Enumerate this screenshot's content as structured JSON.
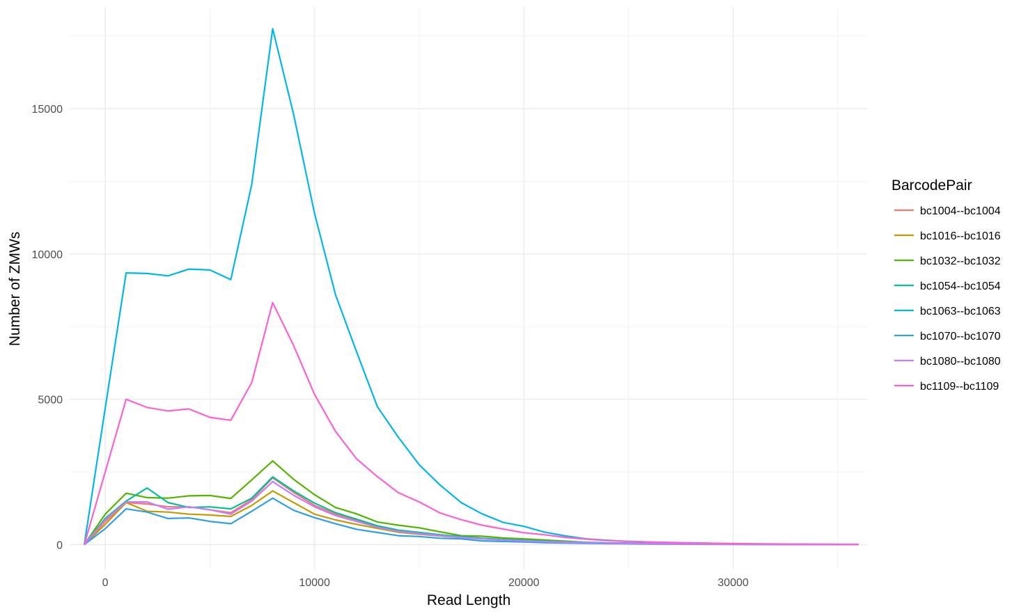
{
  "chart_data": {
    "type": "line",
    "xlabel": "Read Length",
    "ylabel": "Number of ZMWs",
    "xlim": [
      -1700,
      36400
    ],
    "ylim": [
      -850,
      18500
    ],
    "x_ticks": [
      0,
      10000,
      20000,
      30000
    ],
    "y_ticks": [
      0,
      5000,
      10000,
      15000
    ],
    "x_tick_labels": [
      "0",
      "10000",
      "20000",
      "30000"
    ],
    "y_tick_labels": [
      "0",
      "5000",
      "10000",
      "15000"
    ],
    "grid": true,
    "legend_title": "BarcodePair",
    "legend_position": "right",
    "series": [
      {
        "name": "bc1004--bc1004",
        "color": "#F8766D",
        "points": [
          [
            -1000,
            0
          ],
          [
            0,
            800
          ],
          [
            1000,
            1450
          ],
          [
            2000,
            1400
          ],
          [
            3000,
            1300
          ],
          [
            4000,
            1300
          ],
          [
            5000,
            1200
          ],
          [
            6000,
            1100
          ],
          [
            7000,
            1550
          ],
          [
            8000,
            2300
          ],
          [
            9000,
            1800
          ],
          [
            10000,
            1350
          ],
          [
            11000,
            1050
          ],
          [
            12000,
            850
          ],
          [
            13000,
            620
          ],
          [
            14000,
            480
          ],
          [
            15000,
            400
          ],
          [
            16000,
            320
          ],
          [
            17000,
            260
          ],
          [
            18000,
            210
          ],
          [
            19000,
            170
          ],
          [
            20000,
            140
          ],
          [
            21000,
            110
          ],
          [
            22000,
            90
          ],
          [
            23000,
            70
          ],
          [
            24000,
            55
          ],
          [
            25000,
            45
          ],
          [
            26000,
            35
          ],
          [
            27000,
            28
          ],
          [
            28000,
            22
          ],
          [
            29000,
            18
          ],
          [
            30000,
            15
          ],
          [
            31000,
            12
          ],
          [
            32000,
            10
          ],
          [
            33000,
            8
          ],
          [
            34000,
            6
          ],
          [
            35000,
            5
          ],
          [
            36000,
            4
          ]
        ]
      },
      {
        "name": "bc1016--bc1016",
        "color": "#C49A00",
        "points": [
          [
            -1000,
            0
          ],
          [
            0,
            700
          ],
          [
            1000,
            1450
          ],
          [
            2000,
            1150
          ],
          [
            3000,
            1120
          ],
          [
            4000,
            1050
          ],
          [
            5000,
            1020
          ],
          [
            6000,
            970
          ],
          [
            7000,
            1350
          ],
          [
            8000,
            1850
          ],
          [
            9000,
            1450
          ],
          [
            10000,
            1050
          ],
          [
            11000,
            850
          ],
          [
            12000,
            700
          ],
          [
            13000,
            560
          ],
          [
            14000,
            430
          ],
          [
            15000,
            360
          ],
          [
            16000,
            300
          ],
          [
            17000,
            250
          ],
          [
            18000,
            200
          ],
          [
            19000,
            170
          ],
          [
            20000,
            140
          ],
          [
            21000,
            110
          ],
          [
            22000,
            90
          ],
          [
            23000,
            70
          ],
          [
            24000,
            55
          ],
          [
            25000,
            45
          ],
          [
            26000,
            35
          ],
          [
            27000,
            28
          ],
          [
            28000,
            22
          ],
          [
            29000,
            18
          ],
          [
            30000,
            15
          ],
          [
            31000,
            12
          ],
          [
            32000,
            10
          ],
          [
            33000,
            8
          ],
          [
            34000,
            6
          ],
          [
            35000,
            5
          ],
          [
            36000,
            4
          ]
        ]
      },
      {
        "name": "bc1032--bc1032",
        "color": "#53B400",
        "points": [
          [
            -1000,
            0
          ],
          [
            0,
            1050
          ],
          [
            1000,
            1770
          ],
          [
            2000,
            1620
          ],
          [
            3000,
            1600
          ],
          [
            4000,
            1680
          ],
          [
            5000,
            1690
          ],
          [
            6000,
            1590
          ],
          [
            7000,
            2230
          ],
          [
            8000,
            2880
          ],
          [
            9000,
            2250
          ],
          [
            10000,
            1720
          ],
          [
            11000,
            1280
          ],
          [
            12000,
            1060
          ],
          [
            13000,
            780
          ],
          [
            14000,
            670
          ],
          [
            15000,
            580
          ],
          [
            16000,
            440
          ],
          [
            17000,
            310
          ],
          [
            18000,
            290
          ],
          [
            19000,
            230
          ],
          [
            20000,
            200
          ],
          [
            21000,
            160
          ],
          [
            22000,
            120
          ],
          [
            23000,
            80
          ],
          [
            24000,
            60
          ],
          [
            25000,
            50
          ],
          [
            26000,
            40
          ],
          [
            27000,
            32
          ],
          [
            28000,
            26
          ],
          [
            29000,
            20
          ],
          [
            30000,
            16
          ],
          [
            31000,
            13
          ],
          [
            32000,
            10
          ],
          [
            33000,
            8
          ],
          [
            34000,
            6
          ],
          [
            35000,
            5
          ],
          [
            36000,
            4
          ]
        ]
      },
      {
        "name": "bc1054--bc1054",
        "color": "#00C094",
        "points": [
          [
            -1000,
            0
          ],
          [
            0,
            900
          ],
          [
            1000,
            1500
          ],
          [
            2000,
            1950
          ],
          [
            3000,
            1450
          ],
          [
            4000,
            1280
          ],
          [
            5000,
            1300
          ],
          [
            6000,
            1230
          ],
          [
            7000,
            1600
          ],
          [
            8000,
            2330
          ],
          [
            9000,
            1850
          ],
          [
            10000,
            1430
          ],
          [
            11000,
            1100
          ],
          [
            12000,
            880
          ],
          [
            13000,
            650
          ],
          [
            14000,
            500
          ],
          [
            15000,
            420
          ],
          [
            16000,
            340
          ],
          [
            17000,
            280
          ],
          [
            18000,
            220
          ],
          [
            19000,
            180
          ],
          [
            20000,
            150
          ],
          [
            21000,
            120
          ],
          [
            22000,
            95
          ],
          [
            23000,
            75
          ],
          [
            24000,
            60
          ],
          [
            25000,
            48
          ],
          [
            26000,
            38
          ],
          [
            27000,
            30
          ],
          [
            28000,
            24
          ],
          [
            29000,
            19
          ],
          [
            30000,
            15
          ],
          [
            31000,
            12
          ],
          [
            32000,
            10
          ],
          [
            33000,
            8
          ],
          [
            34000,
            6
          ],
          [
            35000,
            5
          ],
          [
            36000,
            4
          ]
        ]
      },
      {
        "name": "bc1063--bc1063",
        "color": "#00B6EB",
        "points": [
          [
            -1000,
            0
          ],
          [
            0,
            4700
          ],
          [
            1000,
            9350
          ],
          [
            2000,
            9330
          ],
          [
            3000,
            9250
          ],
          [
            4000,
            9480
          ],
          [
            5000,
            9450
          ],
          [
            6000,
            9120
          ],
          [
            7000,
            12400
          ],
          [
            8000,
            17750
          ],
          [
            9000,
            14800
          ],
          [
            10000,
            11400
          ],
          [
            11000,
            8600
          ],
          [
            12000,
            6650
          ],
          [
            13000,
            4750
          ],
          [
            14000,
            3700
          ],
          [
            15000,
            2750
          ],
          [
            16000,
            2050
          ],
          [
            17000,
            1450
          ],
          [
            18000,
            1060
          ],
          [
            19000,
            770
          ],
          [
            20000,
            630
          ],
          [
            21000,
            430
          ],
          [
            22000,
            300
          ],
          [
            23000,
            200
          ],
          [
            24000,
            150
          ],
          [
            25000,
            110
          ],
          [
            26000,
            90
          ],
          [
            27000,
            70
          ],
          [
            28000,
            55
          ],
          [
            29000,
            45
          ],
          [
            30000,
            35
          ],
          [
            31000,
            28
          ],
          [
            32000,
            22
          ],
          [
            33000,
            18
          ],
          [
            34000,
            14
          ],
          [
            35000,
            10
          ],
          [
            36000,
            8
          ]
        ]
      },
      {
        "name": "bc1070--bc1070",
        "color": "#2E9FE8",
        "points": [
          [
            -1000,
            0
          ],
          [
            0,
            550
          ],
          [
            1000,
            1230
          ],
          [
            2000,
            1120
          ],
          [
            3000,
            900
          ],
          [
            4000,
            920
          ],
          [
            5000,
            800
          ],
          [
            6000,
            720
          ],
          [
            7000,
            1150
          ],
          [
            8000,
            1600
          ],
          [
            9000,
            1180
          ],
          [
            10000,
            930
          ],
          [
            11000,
            720
          ],
          [
            12000,
            530
          ],
          [
            13000,
            420
          ],
          [
            14000,
            310
          ],
          [
            15000,
            280
          ],
          [
            16000,
            220
          ],
          [
            17000,
            200
          ],
          [
            18000,
            130
          ],
          [
            19000,
            110
          ],
          [
            20000,
            90
          ],
          [
            21000,
            70
          ],
          [
            22000,
            55
          ],
          [
            23000,
            45
          ],
          [
            24000,
            35
          ],
          [
            25000,
            28
          ],
          [
            26000,
            22
          ],
          [
            27000,
            18
          ],
          [
            28000,
            14
          ],
          [
            29000,
            11
          ],
          [
            30000,
            9
          ],
          [
            31000,
            7
          ],
          [
            32000,
            6
          ],
          [
            33000,
            5
          ],
          [
            34000,
            4
          ],
          [
            35000,
            3
          ],
          [
            36000,
            2
          ]
        ]
      },
      {
        "name": "bc1080--bc1080",
        "color": "#C77CFF",
        "points": [
          [
            -1000,
            0
          ],
          [
            0,
            850
          ],
          [
            1000,
            1470
          ],
          [
            2000,
            1470
          ],
          [
            3000,
            1220
          ],
          [
            4000,
            1300
          ],
          [
            5000,
            1200
          ],
          [
            6000,
            1050
          ],
          [
            7000,
            1500
          ],
          [
            8000,
            2170
          ],
          [
            9000,
            1700
          ],
          [
            10000,
            1300
          ],
          [
            11000,
            1000
          ],
          [
            12000,
            800
          ],
          [
            13000,
            600
          ],
          [
            14000,
            460
          ],
          [
            15000,
            380
          ],
          [
            16000,
            310
          ],
          [
            17000,
            250
          ],
          [
            18000,
            200
          ],
          [
            19000,
            160
          ],
          [
            20000,
            130
          ],
          [
            21000,
            105
          ],
          [
            22000,
            85
          ],
          [
            23000,
            65
          ],
          [
            24000,
            52
          ],
          [
            25000,
            42
          ],
          [
            26000,
            33
          ],
          [
            27000,
            26
          ],
          [
            28000,
            21
          ],
          [
            29000,
            17
          ],
          [
            30000,
            14
          ],
          [
            31000,
            11
          ],
          [
            32000,
            9
          ],
          [
            33000,
            7
          ],
          [
            34000,
            6
          ],
          [
            35000,
            5
          ],
          [
            36000,
            4
          ]
        ]
      },
      {
        "name": "bc1109--bc1109",
        "color": "#FB61D7",
        "points": [
          [
            -1000,
            0
          ],
          [
            0,
            2500
          ],
          [
            1000,
            5000
          ],
          [
            2000,
            4720
          ],
          [
            3000,
            4600
          ],
          [
            4000,
            4670
          ],
          [
            5000,
            4380
          ],
          [
            6000,
            4280
          ],
          [
            7000,
            5580
          ],
          [
            8000,
            8330
          ],
          [
            9000,
            6850
          ],
          [
            10000,
            5170
          ],
          [
            11000,
            3900
          ],
          [
            12000,
            2960
          ],
          [
            13000,
            2340
          ],
          [
            14000,
            1790
          ],
          [
            15000,
            1470
          ],
          [
            16000,
            1090
          ],
          [
            17000,
            860
          ],
          [
            18000,
            670
          ],
          [
            19000,
            540
          ],
          [
            20000,
            410
          ],
          [
            21000,
            340
          ],
          [
            22000,
            250
          ],
          [
            23000,
            190
          ],
          [
            24000,
            140
          ],
          [
            25000,
            110
          ],
          [
            26000,
            90
          ],
          [
            27000,
            75
          ],
          [
            28000,
            60
          ],
          [
            29000,
            48
          ],
          [
            30000,
            38
          ],
          [
            31000,
            30
          ],
          [
            32000,
            24
          ],
          [
            33000,
            19
          ],
          [
            34000,
            15
          ],
          [
            35000,
            12
          ],
          [
            36000,
            9
          ]
        ]
      }
    ]
  }
}
